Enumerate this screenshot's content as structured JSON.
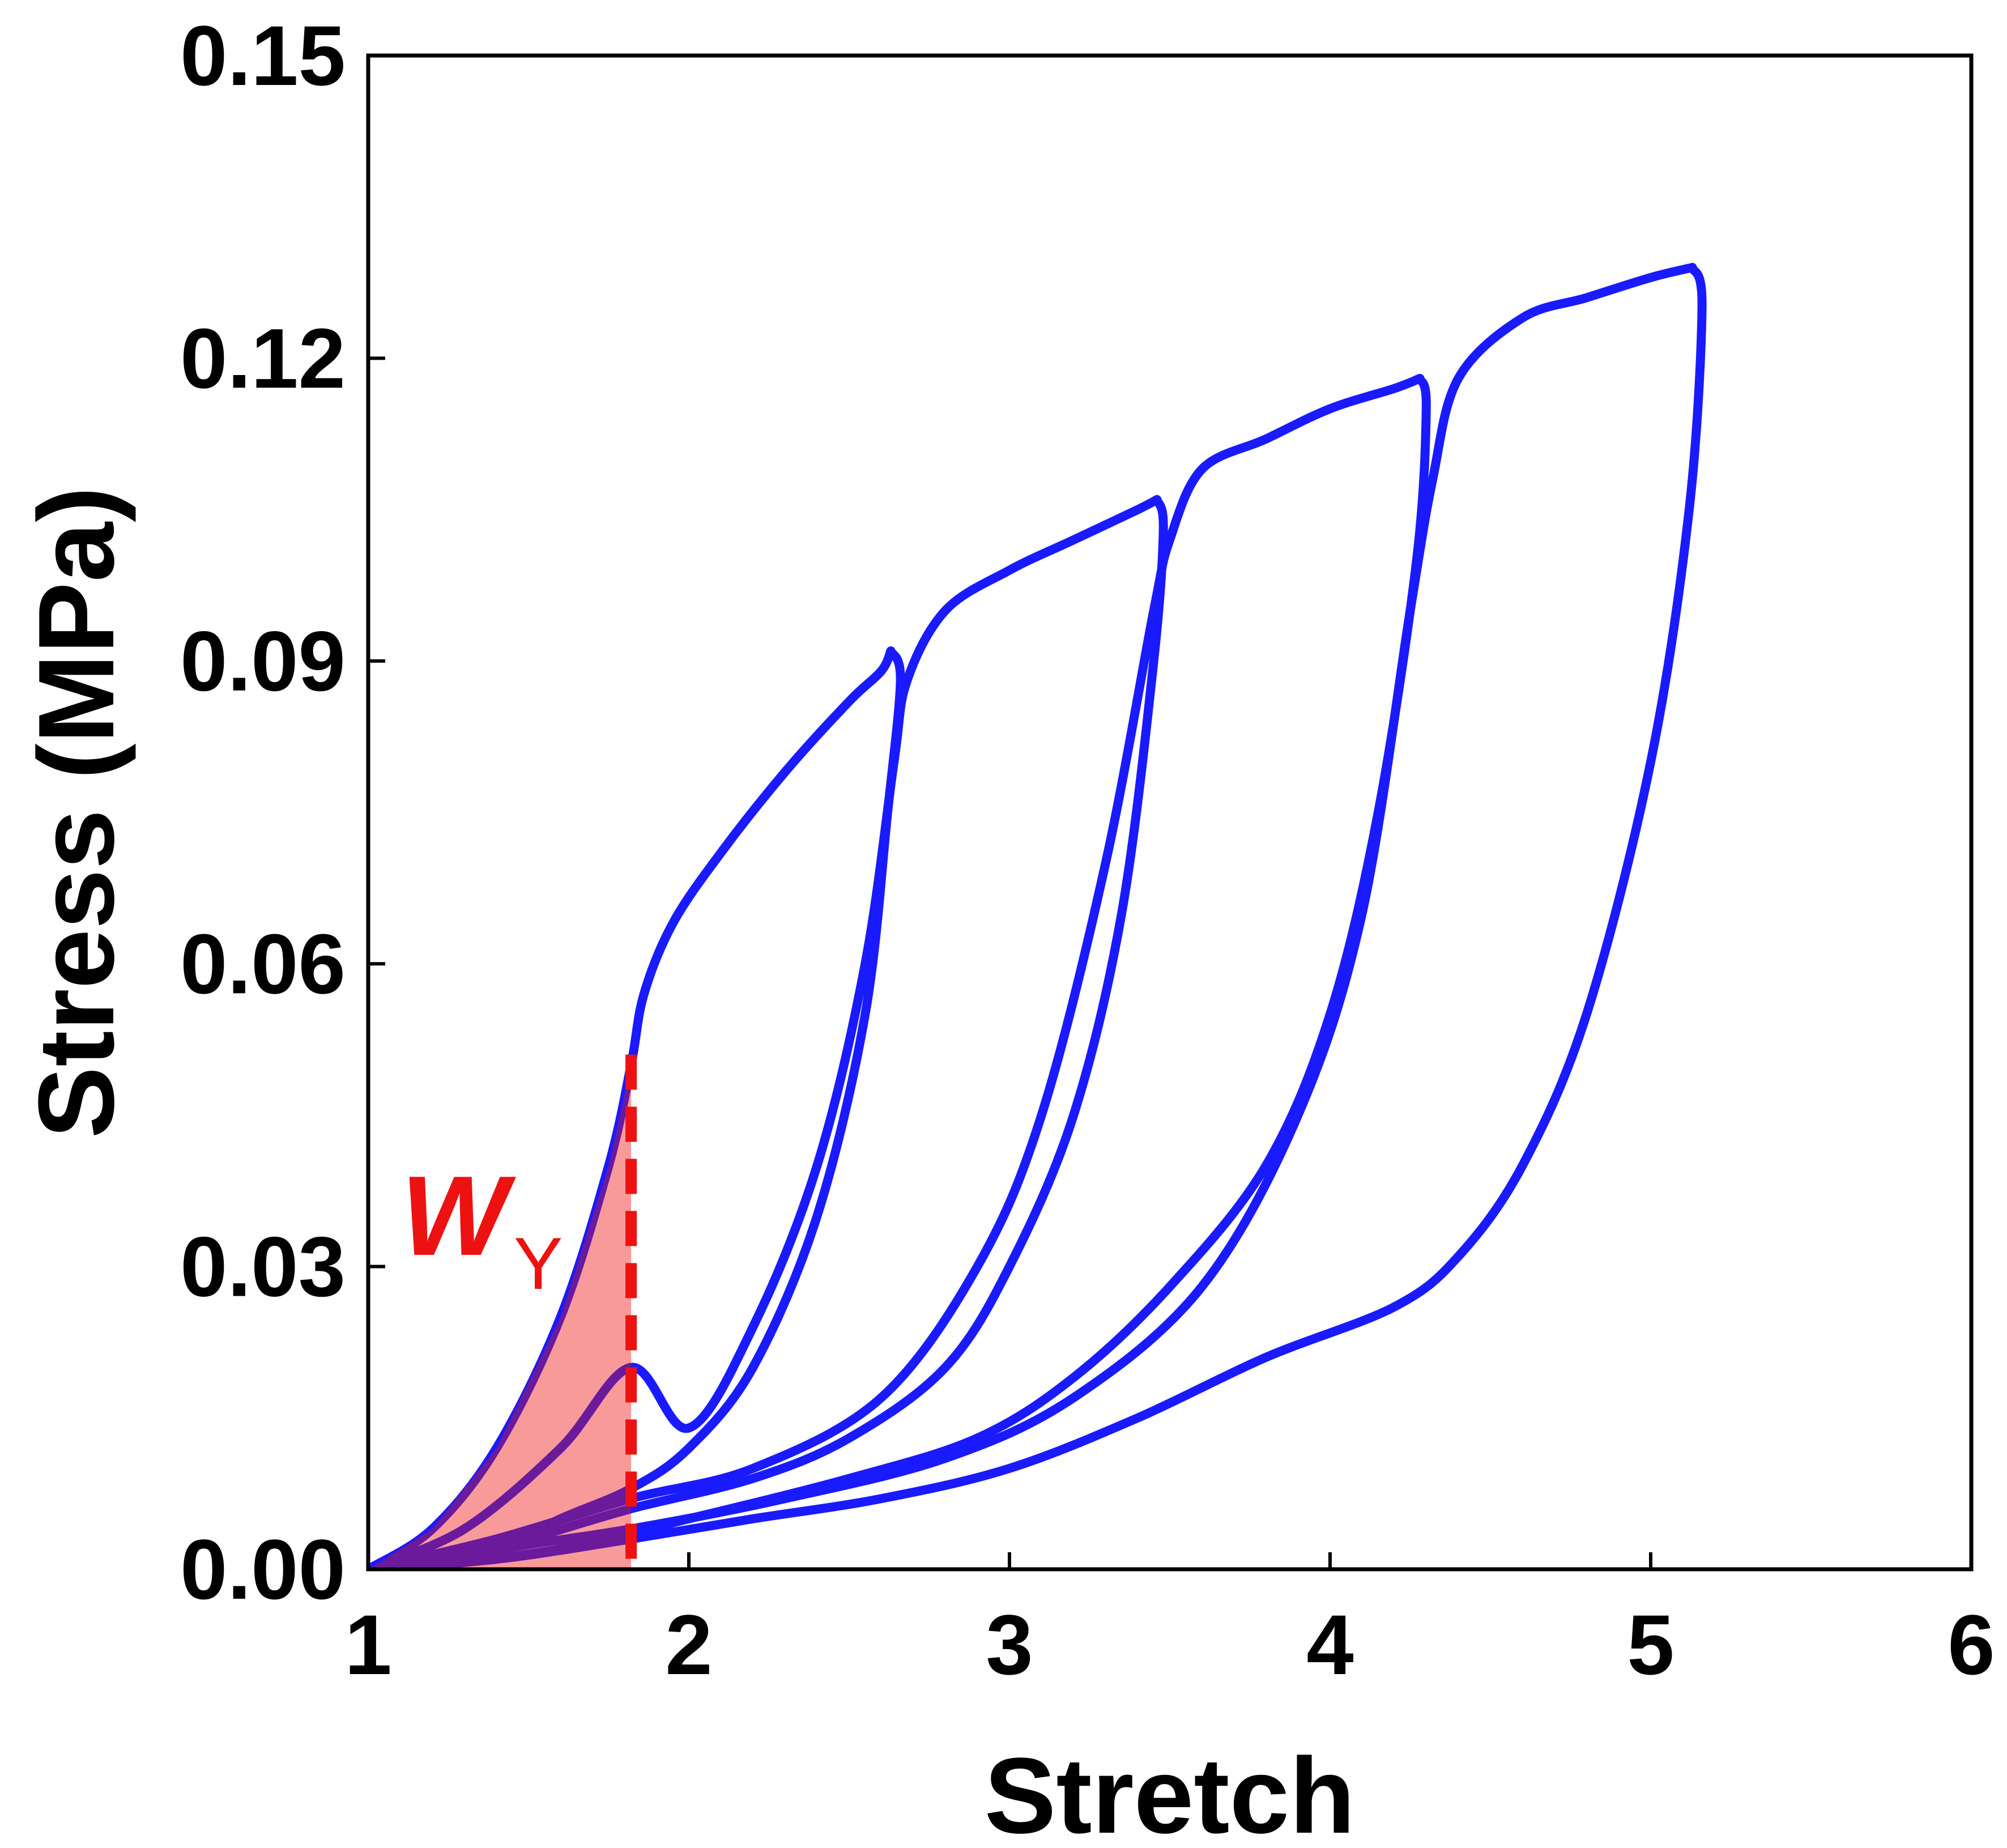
{
  "chart_data": {
    "type": "line",
    "xlabel": "Stretch",
    "ylabel": "Stress (MPa)",
    "xlim": [
      1,
      6
    ],
    "ylim": [
      0,
      0.15
    ],
    "xticks": [
      "1",
      "2",
      "3",
      "4",
      "5",
      "6"
    ],
    "yticks": [
      "0.00",
      "0.03",
      "0.06",
      "0.09",
      "0.12",
      "0.15"
    ],
    "grid": false,
    "series_color": "#1a1aff",
    "series": [
      {
        "loading": [
          [
            1.0,
            0.0
          ],
          [
            1.2,
            0.004
          ],
          [
            1.4,
            0.012
          ],
          [
            1.6,
            0.025
          ],
          [
            1.75,
            0.04
          ],
          [
            1.82,
            0.05
          ],
          [
            1.86,
            0.057
          ],
          [
            1.95,
            0.064
          ],
          [
            2.1,
            0.071
          ],
          [
            2.3,
            0.079
          ],
          [
            2.5,
            0.086
          ],
          [
            2.6,
            0.089
          ],
          [
            2.63,
            0.091
          ]
        ],
        "unloading": [
          [
            2.63,
            0.091
          ],
          [
            2.66,
            0.088
          ],
          [
            2.62,
            0.075
          ],
          [
            2.55,
            0.055
          ],
          [
            2.4,
            0.035
          ],
          [
            2.2,
            0.02
          ],
          [
            2.0,
            0.012
          ],
          [
            1.82,
            0.008
          ],
          [
            1.6,
            0.005
          ],
          [
            1.4,
            0.002
          ],
          [
            1.2,
            0.0005
          ],
          [
            1.0,
            0.0
          ]
        ]
      },
      {
        "loading": [
          [
            1.0,
            0.0
          ],
          [
            1.3,
            0.004
          ],
          [
            1.6,
            0.012
          ],
          [
            1.82,
            0.02
          ],
          [
            2.0,
            0.014
          ],
          [
            2.2,
            0.024
          ],
          [
            2.4,
            0.04
          ],
          [
            2.55,
            0.06
          ],
          [
            2.64,
            0.08
          ],
          [
            2.68,
            0.088
          ],
          [
            2.8,
            0.095
          ],
          [
            3.0,
            0.099
          ],
          [
            3.2,
            0.102
          ],
          [
            3.4,
            0.105
          ],
          [
            3.46,
            0.106
          ]
        ],
        "unloading": [
          [
            3.46,
            0.106
          ],
          [
            3.48,
            0.103
          ],
          [
            3.45,
            0.09
          ],
          [
            3.35,
            0.065
          ],
          [
            3.2,
            0.045
          ],
          [
            3.0,
            0.03
          ],
          [
            2.8,
            0.02
          ],
          [
            2.5,
            0.013
          ],
          [
            2.2,
            0.009
          ],
          [
            1.82,
            0.006
          ],
          [
            1.5,
            0.003
          ],
          [
            1.2,
            0.0005
          ],
          [
            1.0,
            0.0
          ]
        ]
      },
      {
        "loading": [
          [
            1.0,
            0.0
          ],
          [
            1.4,
            0.003
          ],
          [
            1.82,
            0.007
          ],
          [
            2.2,
            0.01
          ],
          [
            2.6,
            0.017
          ],
          [
            2.9,
            0.03
          ],
          [
            3.1,
            0.045
          ],
          [
            3.3,
            0.07
          ],
          [
            3.45,
            0.095
          ],
          [
            3.5,
            0.102
          ],
          [
            3.6,
            0.109
          ],
          [
            3.8,
            0.112
          ],
          [
            4.0,
            0.115
          ],
          [
            4.2,
            0.117
          ],
          [
            4.28,
            0.118
          ]
        ],
        "unloading": [
          [
            4.28,
            0.118
          ],
          [
            4.3,
            0.115
          ],
          [
            4.27,
            0.1
          ],
          [
            4.15,
            0.075
          ],
          [
            4.0,
            0.055
          ],
          [
            3.8,
            0.04
          ],
          [
            3.5,
            0.028
          ],
          [
            3.2,
            0.019
          ],
          [
            2.9,
            0.013
          ],
          [
            2.5,
            0.009
          ],
          [
            2.0,
            0.005
          ],
          [
            1.6,
            0.002
          ],
          [
            1.2,
            0.0005
          ],
          [
            1.0,
            0.0
          ]
        ]
      },
      {
        "loading": [
          [
            1.0,
            0.0
          ],
          [
            1.4,
            0.002
          ],
          [
            1.82,
            0.004
          ],
          [
            2.3,
            0.007
          ],
          [
            2.8,
            0.011
          ],
          [
            3.2,
            0.017
          ],
          [
            3.6,
            0.028
          ],
          [
            3.9,
            0.045
          ],
          [
            4.1,
            0.065
          ],
          [
            4.25,
            0.095
          ],
          [
            4.32,
            0.108
          ],
          [
            4.4,
            0.118
          ],
          [
            4.6,
            0.124
          ],
          [
            4.8,
            0.126
          ],
          [
            5.0,
            0.128
          ],
          [
            5.13,
            0.129
          ]
        ],
        "unloading": [
          [
            5.13,
            0.129
          ],
          [
            5.16,
            0.125
          ],
          [
            5.12,
            0.105
          ],
          [
            5.0,
            0.08
          ],
          [
            4.8,
            0.055
          ],
          [
            4.6,
            0.04
          ],
          [
            4.4,
            0.031
          ],
          [
            4.2,
            0.026
          ],
          [
            3.8,
            0.021
          ],
          [
            3.4,
            0.015
          ],
          [
            3.0,
            0.01
          ],
          [
            2.6,
            0.007
          ],
          [
            2.2,
            0.005
          ],
          [
            1.82,
            0.003
          ],
          [
            1.4,
            0.001
          ],
          [
            1.0,
            0.0
          ]
        ]
      }
    ],
    "annotations": [
      {
        "text_main": "W",
        "text_sub": "Y",
        "color": "#ee1111",
        "shaded_region": {
          "x_from": 1.0,
          "x_to": 1.82,
          "fill": "#f78f8f"
        },
        "dashed_line_x": 1.82,
        "dashed_line_y_top": 0.051
      }
    ]
  }
}
